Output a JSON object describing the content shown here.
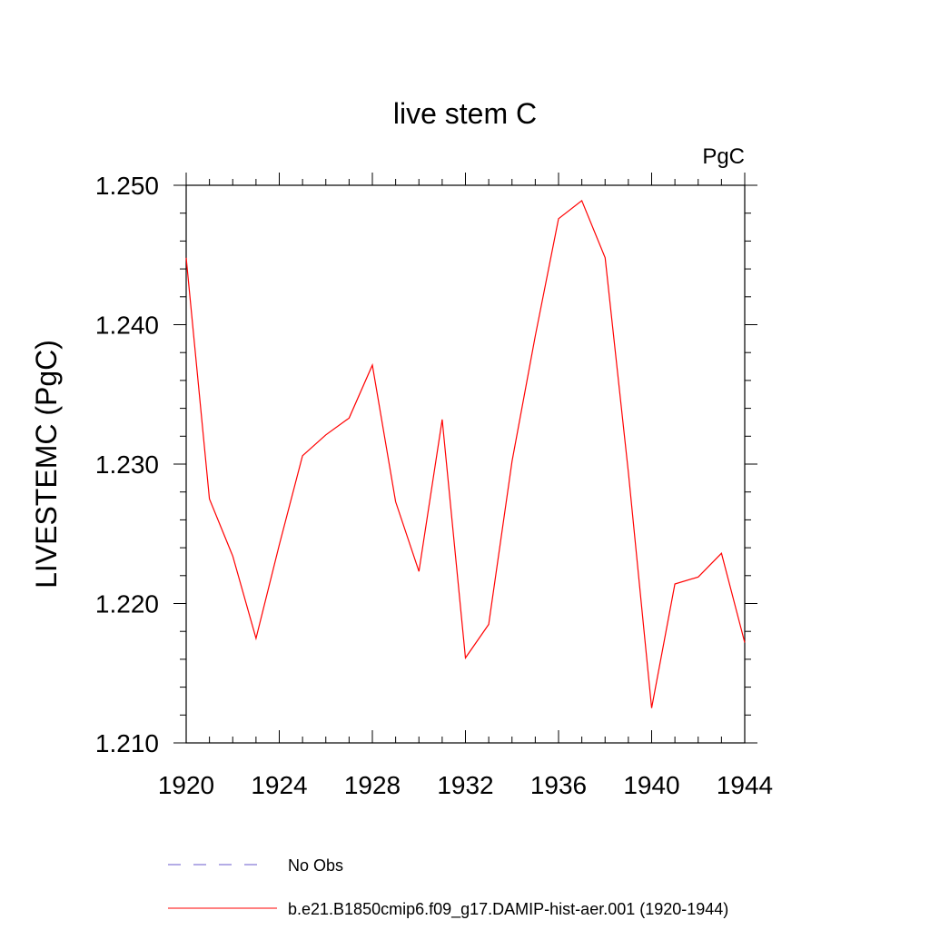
{
  "chart_data": {
    "type": "line",
    "title": "live stem C",
    "units_label": "PgC",
    "ylabel": "LIVESTEMC  (PgC)",
    "xlabel": "",
    "xlim": [
      1920,
      1944
    ],
    "ylim": [
      1.21,
      1.25
    ],
    "x_ticks": [
      1920,
      1924,
      1928,
      1932,
      1936,
      1940,
      1944
    ],
    "x_tick_labels": [
      "1920",
      "1924",
      "1928",
      "1932",
      "1936",
      "1940",
      "1944"
    ],
    "y_ticks": [
      1.21,
      1.22,
      1.23,
      1.24,
      1.25
    ],
    "y_tick_labels": [
      "1.210",
      "1.220",
      "1.230",
      "1.240",
      "1.250"
    ],
    "grid": false,
    "legend_placement": "bottom",
    "series": [
      {
        "name": "b.e21.B1850cmip6.f09_g17.DAMIP-hist-aer.001 (1920-1944)",
        "color": "#ff0000",
        "style": "solid",
        "x": [
          1920,
          1921,
          1922,
          1923,
          1924,
          1925,
          1926,
          1927,
          1928,
          1929,
          1930,
          1931,
          1932,
          1933,
          1934,
          1935,
          1936,
          1937,
          1938,
          1939,
          1940,
          1941,
          1942,
          1943,
          1944
        ],
        "y": [
          1.2448,
          1.2275,
          1.2234,
          1.2175,
          1.2242,
          1.2306,
          1.2321,
          1.2333,
          1.2371,
          1.2273,
          1.2223,
          1.2332,
          1.2161,
          1.2185,
          1.2302,
          1.2392,
          1.2476,
          1.2489,
          1.2448,
          1.2294,
          1.2125,
          1.2214,
          1.2219,
          1.2236,
          1.2172
        ]
      }
    ],
    "legend": [
      {
        "label": "No Obs",
        "color": "#6a5acd",
        "style": "dashed"
      },
      {
        "label": "b.e21.B1850cmip6.f09_g17.DAMIP-hist-aer.001 (1920-1944)",
        "color": "#ff0000",
        "style": "solid"
      }
    ]
  }
}
